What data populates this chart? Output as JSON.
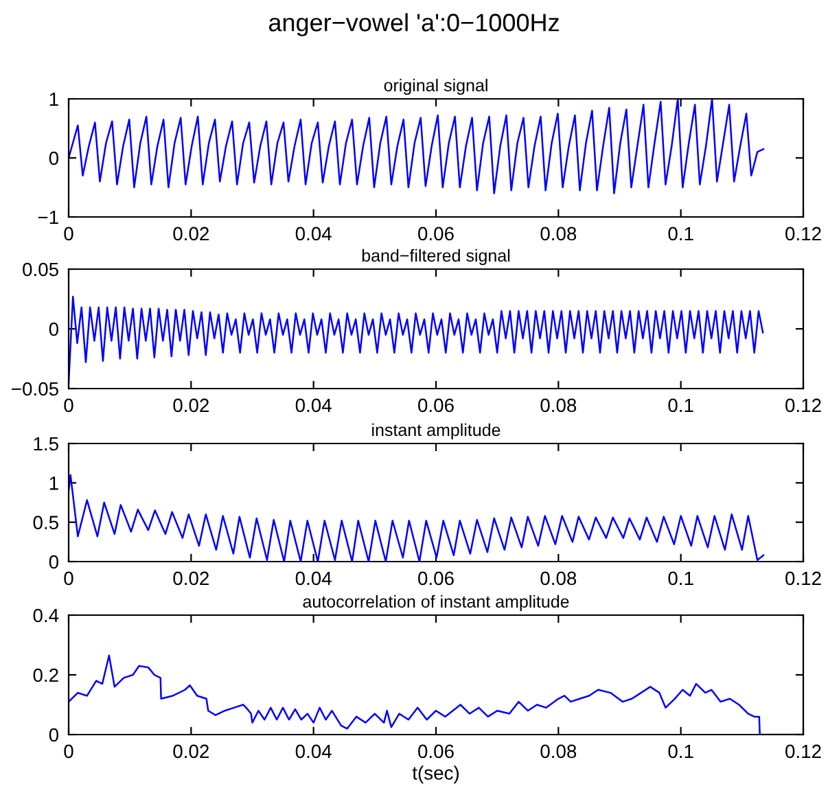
{
  "chart_data": [
    {
      "type": "line",
      "title": "anger−vowel 'a':0−1000Hz",
      "subtitle": "original signal",
      "xlim": [
        0,
        0.12
      ],
      "xticks": [
        0,
        0.02,
        0.04,
        0.06,
        0.08,
        0.1,
        0.12
      ],
      "ylim": [
        -1,
        1
      ],
      "yticks": [
        {
          "value": -1,
          "label": "−1"
        },
        0,
        1
      ],
      "grid": false,
      "series": [
        {
          "color": "#0000ff",
          "x": [
            0,
            0.0015,
            0.0023,
            0.0033,
            0.0043,
            0.0051,
            0.0061,
            0.0071,
            0.0079,
            0.0089,
            0.0099,
            0.0107,
            0.0117,
            0.0127,
            0.0135,
            0.0145,
            0.0155,
            0.0163,
            0.0173,
            0.0183,
            0.0191,
            0.0201,
            0.0211,
            0.0219,
            0.0229,
            0.0239,
            0.0247,
            0.0257,
            0.0267,
            0.0275,
            0.0285,
            0.0295,
            0.0303,
            0.0313,
            0.0323,
            0.0331,
            0.0341,
            0.0351,
            0.0359,
            0.0369,
            0.0379,
            0.0387,
            0.0397,
            0.0407,
            0.0415,
            0.0425,
            0.0435,
            0.0443,
            0.0453,
            0.0463,
            0.0471,
            0.0481,
            0.0491,
            0.0499,
            0.0509,
            0.0519,
            0.0527,
            0.0537,
            0.0547,
            0.0555,
            0.0565,
            0.0575,
            0.0583,
            0.0593,
            0.0603,
            0.0611,
            0.0621,
            0.0631,
            0.0639,
            0.0649,
            0.0659,
            0.0667,
            0.0677,
            0.0687,
            0.0695,
            0.0705,
            0.0715,
            0.0723,
            0.0733,
            0.0743,
            0.0751,
            0.0761,
            0.0771,
            0.0779,
            0.0789,
            0.0799,
            0.0807,
            0.0817,
            0.0827,
            0.0835,
            0.0845,
            0.0855,
            0.0863,
            0.0873,
            0.0883,
            0.0891,
            0.0901,
            0.0911,
            0.0919,
            0.0929,
            0.0939,
            0.0947,
            0.0957,
            0.0967,
            0.0975,
            0.0985,
            0.0995,
            0.1003,
            0.1013,
            0.1023,
            0.1031,
            0.1041,
            0.1051,
            0.1059,
            0.1069,
            0.1079,
            0.1087,
            0.1097,
            0.1107,
            0.1115,
            0.1125,
            0.1135
          ],
          "values": [
            0,
            0.55,
            -0.3,
            0.2,
            0.6,
            -0.4,
            0.25,
            0.62,
            -0.45,
            0.2,
            0.65,
            -0.5,
            0.25,
            0.7,
            -0.45,
            0.2,
            0.65,
            -0.5,
            0.25,
            0.68,
            -0.45,
            0.2,
            0.7,
            -0.45,
            0.25,
            0.65,
            -0.4,
            0.2,
            0.62,
            -0.45,
            0.25,
            0.6,
            -0.42,
            0.2,
            0.62,
            -0.45,
            0.25,
            0.6,
            -0.4,
            0.2,
            0.65,
            -0.45,
            0.25,
            0.6,
            -0.42,
            0.2,
            0.62,
            -0.45,
            0.25,
            0.65,
            -0.45,
            0.2,
            0.68,
            -0.5,
            0.25,
            0.7,
            -0.45,
            0.2,
            0.65,
            -0.5,
            0.25,
            0.68,
            -0.48,
            0.2,
            0.72,
            -0.5,
            0.25,
            0.7,
            -0.5,
            0.2,
            0.68,
            -0.55,
            0.25,
            0.7,
            -0.6,
            0.2,
            0.72,
            -0.55,
            0.25,
            0.68,
            -0.5,
            0.2,
            0.7,
            -0.55,
            0.25,
            0.75,
            -0.5,
            0.2,
            0.72,
            -0.55,
            0.25,
            0.8,
            -0.55,
            0.2,
            0.85,
            -0.6,
            0.25,
            0.82,
            -0.5,
            0.2,
            0.9,
            -0.5,
            0.25,
            0.95,
            -0.45,
            0.2,
            1.0,
            -0.5,
            0.25,
            0.9,
            -0.45,
            0.2,
            1.0,
            -0.4,
            0.25,
            0.9,
            -0.4,
            0.2,
            0.75,
            -0.3,
            0.1,
            0.15
          ]
        }
      ]
    },
    {
      "type": "line",
      "title": "band−filtered signal",
      "xlim": [
        0,
        0.12
      ],
      "xticks": [
        0,
        0.02,
        0.04,
        0.06,
        0.08,
        0.1,
        0.12
      ],
      "ylim": [
        -0.05,
        0.05
      ],
      "yticks": [
        {
          "value": -0.05,
          "label": "−0.05"
        },
        0,
        0.05
      ],
      "grid": false,
      "series": [
        {
          "color": "#0000ff",
          "x": [
            0,
            0.0007,
            0.0014,
            0.0021,
            0.0028,
            0.0035,
            0.0042,
            0.0049,
            0.0056,
            0.0063,
            0.007,
            0.0077,
            0.0084,
            0.0091,
            0.0098,
            0.0105,
            0.0112,
            0.0119,
            0.0126,
            0.0133,
            0.014,
            0.0147,
            0.0154,
            0.0161,
            0.0168,
            0.0175,
            0.0182,
            0.0189,
            0.0196,
            0.0203,
            0.021,
            0.0217,
            0.0224,
            0.0231,
            0.0238,
            0.0245,
            0.0252,
            0.0259,
            0.0266,
            0.0273,
            0.028,
            0.0287,
            0.0294,
            0.0301,
            0.0308,
            0.0315,
            0.0322,
            0.0329,
            0.0336,
            0.0343,
            0.035,
            0.0357,
            0.0364,
            0.0371,
            0.0378,
            0.0385,
            0.0392,
            0.0399,
            0.0406,
            0.0413,
            0.042,
            0.0427,
            0.0434,
            0.0441,
            0.0448,
            0.0455,
            0.0462,
            0.0469,
            0.0476,
            0.0483,
            0.049,
            0.0497,
            0.0504,
            0.0511,
            0.0518,
            0.0525,
            0.0532,
            0.0539,
            0.0546,
            0.0553,
            0.056,
            0.0567,
            0.0574,
            0.0581,
            0.0588,
            0.0595,
            0.0602,
            0.0609,
            0.0616,
            0.0623,
            0.063,
            0.0637,
            0.0644,
            0.0651,
            0.0658,
            0.0665,
            0.0672,
            0.0679,
            0.0686,
            0.0693,
            0.07,
            0.0707,
            0.0714,
            0.0721,
            0.0728,
            0.0735,
            0.0742,
            0.0749,
            0.0756,
            0.0763,
            0.077,
            0.0777,
            0.0784,
            0.0791,
            0.0798,
            0.0805,
            0.0812,
            0.0819,
            0.0826,
            0.0833,
            0.084,
            0.0847,
            0.0854,
            0.0861,
            0.0868,
            0.0875,
            0.0882,
            0.0889,
            0.0896,
            0.0903,
            0.091,
            0.0917,
            0.0924,
            0.0931,
            0.0938,
            0.0945,
            0.0952,
            0.0959,
            0.0966,
            0.0973,
            0.098,
            0.0987,
            0.0994,
            0.1001,
            0.1008,
            0.1015,
            0.1022,
            0.1029,
            0.1036,
            0.1043,
            0.105,
            0.1057,
            0.1064,
            0.1071,
            0.1078,
            0.1085,
            0.1092,
            0.1099,
            0.1106,
            0.1113,
            0.112,
            0.1127,
            0.1134
          ],
          "values": [
            -0.045,
            0.027,
            -0.012,
            0.018,
            -0.028,
            0.018,
            -0.01,
            0.018,
            -0.027,
            0.018,
            -0.01,
            0.018,
            -0.025,
            0.018,
            -0.01,
            0.017,
            -0.025,
            0.017,
            -0.01,
            0.017,
            -0.024,
            0.017,
            -0.01,
            0.016,
            -0.023,
            0.016,
            -0.01,
            0.016,
            -0.022,
            0.015,
            -0.008,
            0.014,
            -0.022,
            0.014,
            -0.008,
            0.012,
            -0.02,
            0.013,
            -0.005,
            0.008,
            -0.02,
            0.013,
            -0.005,
            0.008,
            -0.02,
            0.013,
            -0.005,
            0.008,
            -0.02,
            0.013,
            -0.005,
            0.008,
            -0.02,
            0.013,
            -0.005,
            0.008,
            -0.02,
            0.013,
            -0.005,
            0.008,
            -0.02,
            0.013,
            -0.005,
            0.008,
            -0.02,
            0.013,
            -0.005,
            0.008,
            -0.02,
            0.013,
            -0.005,
            0.008,
            -0.02,
            0.013,
            -0.005,
            0.008,
            -0.02,
            0.013,
            -0.005,
            0.008,
            -0.02,
            0.013,
            -0.005,
            0.008,
            -0.02,
            0.013,
            -0.005,
            0.008,
            -0.02,
            0.013,
            -0.005,
            0.008,
            -0.02,
            0.013,
            -0.005,
            0.008,
            -0.02,
            0.013,
            -0.005,
            0.008,
            -0.02,
            0.015,
            -0.008,
            0.015,
            -0.02,
            0.015,
            -0.008,
            0.015,
            -0.02,
            0.015,
            -0.008,
            0.015,
            -0.02,
            0.015,
            -0.008,
            0.015,
            -0.02,
            0.015,
            -0.008,
            0.015,
            -0.02,
            0.015,
            -0.008,
            0.015,
            -0.02,
            0.015,
            -0.008,
            0.015,
            -0.02,
            0.015,
            -0.008,
            0.015,
            -0.02,
            0.015,
            -0.008,
            0.015,
            -0.02,
            0.015,
            -0.008,
            0.015,
            -0.02,
            0.015,
            -0.008,
            0.015,
            -0.02,
            0.015,
            -0.008,
            0.015,
            -0.02,
            0.015,
            -0.008,
            0.015,
            -0.02,
            0.015,
            -0.008,
            0.015,
            -0.02,
            0.015,
            -0.008,
            0.015,
            -0.02,
            0.015,
            -0.003
          ]
        }
      ]
    },
    {
      "type": "line",
      "title": "instant amplitude",
      "xlim": [
        0,
        0.12
      ],
      "xticks": [
        0,
        0.02,
        0.04,
        0.06,
        0.08,
        0.1,
        0.12
      ],
      "ylim": [
        0,
        1.5
      ],
      "yticks": [
        0,
        0.5,
        1,
        1.5
      ],
      "grid": false,
      "series": [
        {
          "color": "#0000ff",
          "x": [
            0,
            0.0003,
            0.0015,
            0.003,
            0.0047,
            0.0058,
            0.0075,
            0.0085,
            0.0102,
            0.0113,
            0.013,
            0.0141,
            0.0158,
            0.0169,
            0.0186,
            0.0196,
            0.0213,
            0.0224,
            0.0241,
            0.0252,
            0.0269,
            0.0279,
            0.0296,
            0.0307,
            0.0324,
            0.0335,
            0.0352,
            0.0362,
            0.0379,
            0.039,
            0.0407,
            0.0418,
            0.0435,
            0.0446,
            0.0463,
            0.0473,
            0.049,
            0.0501,
            0.0518,
            0.0529,
            0.0546,
            0.0556,
            0.0573,
            0.0584,
            0.0601,
            0.0612,
            0.0629,
            0.0639,
            0.0656,
            0.0667,
            0.0684,
            0.0695,
            0.0712,
            0.0723,
            0.074,
            0.075,
            0.0767,
            0.0778,
            0.0795,
            0.0806,
            0.0823,
            0.0833,
            0.085,
            0.0861,
            0.0878,
            0.0889,
            0.0906,
            0.0916,
            0.0933,
            0.0944,
            0.0961,
            0.0972,
            0.0989,
            0.1,
            0.1017,
            0.1027,
            0.1044,
            0.1055,
            0.1072,
            0.1083,
            0.11,
            0.111,
            0.1125,
            0.1135
          ],
          "values": [
            0.9,
            1.1,
            0.32,
            0.78,
            0.32,
            0.75,
            0.35,
            0.72,
            0.38,
            0.66,
            0.4,
            0.65,
            0.35,
            0.63,
            0.3,
            0.6,
            0.2,
            0.6,
            0.15,
            0.58,
            0.1,
            0.57,
            0.05,
            0.55,
            0.02,
            0.53,
            0.0,
            0.52,
            0.0,
            0.52,
            0.0,
            0.52,
            0.02,
            0.52,
            0.0,
            0.52,
            0.0,
            0.52,
            0.0,
            0.52,
            0.05,
            0.52,
            0.0,
            0.52,
            0.05,
            0.52,
            0.08,
            0.52,
            0.1,
            0.53,
            0.12,
            0.55,
            0.15,
            0.56,
            0.18,
            0.57,
            0.2,
            0.58,
            0.22,
            0.58,
            0.25,
            0.57,
            0.28,
            0.56,
            0.3,
            0.56,
            0.3,
            0.55,
            0.28,
            0.56,
            0.25,
            0.57,
            0.22,
            0.58,
            0.2,
            0.58,
            0.18,
            0.58,
            0.15,
            0.6,
            0.15,
            0.58,
            0.02,
            0.08
          ]
        }
      ]
    },
    {
      "type": "line",
      "title": "autocorrelation of instant amplitude",
      "xlabel": "t(sec)",
      "xlim": [
        0,
        0.12
      ],
      "xticks": [
        0,
        0.02,
        0.04,
        0.06,
        0.08,
        0.1,
        0.12
      ],
      "ylim": [
        0,
        0.4
      ],
      "yticks": [
        0,
        0.2,
        0.4
      ],
      "grid": false,
      "series": [
        {
          "color": "#0000ff",
          "x": [
            0,
            0.0015,
            0.003,
            0.0045,
            0.0055,
            0.0066,
            0.0075,
            0.009,
            0.0105,
            0.0115,
            0.013,
            0.014,
            0.015,
            0.0151,
            0.017,
            0.019,
            0.0198,
            0.021,
            0.0225,
            0.0228,
            0.024,
            0.0255,
            0.027,
            0.0285,
            0.029,
            0.0298,
            0.03,
            0.031,
            0.032,
            0.033,
            0.034,
            0.035,
            0.036,
            0.037,
            0.038,
            0.039,
            0.04,
            0.041,
            0.042,
            0.043,
            0.0445,
            0.0455,
            0.047,
            0.0485,
            0.05,
            0.0515,
            0.052,
            0.0527,
            0.054,
            0.0555,
            0.057,
            0.0585,
            0.06,
            0.0615,
            0.064,
            0.0655,
            0.067,
            0.0685,
            0.07,
            0.072,
            0.0735,
            0.075,
            0.0765,
            0.078,
            0.08,
            0.081,
            0.082,
            0.0835,
            0.085,
            0.0865,
            0.0885,
            0.0905,
            0.092,
            0.0935,
            0.095,
            0.0965,
            0.0975,
            0.099,
            0.1003,
            0.1015,
            0.1025,
            0.104,
            0.105,
            0.1065,
            0.108,
            0.1095,
            0.111,
            0.112,
            0.1128,
            0.1129,
            0.12
          ],
          "values": [
            0.11,
            0.14,
            0.13,
            0.18,
            0.17,
            0.265,
            0.16,
            0.19,
            0.2,
            0.23,
            0.225,
            0.2,
            0.19,
            0.12,
            0.13,
            0.15,
            0.165,
            0.13,
            0.12,
            0.08,
            0.065,
            0.08,
            0.09,
            0.1,
            0.09,
            0.07,
            0.04,
            0.08,
            0.05,
            0.09,
            0.05,
            0.09,
            0.05,
            0.085,
            0.05,
            0.07,
            0.04,
            0.09,
            0.05,
            0.08,
            0.03,
            0.02,
            0.06,
            0.04,
            0.07,
            0.04,
            0.08,
            0.025,
            0.07,
            0.05,
            0.09,
            0.05,
            0.08,
            0.06,
            0.1,
            0.07,
            0.09,
            0.06,
            0.08,
            0.07,
            0.11,
            0.08,
            0.1,
            0.09,
            0.12,
            0.13,
            0.11,
            0.12,
            0.13,
            0.15,
            0.14,
            0.11,
            0.12,
            0.14,
            0.16,
            0.14,
            0.09,
            0.12,
            0.15,
            0.13,
            0.17,
            0.14,
            0.15,
            0.11,
            0.12,
            0.1,
            0.07,
            0.06,
            0.06,
            0,
            0
          ]
        }
      ]
    }
  ]
}
